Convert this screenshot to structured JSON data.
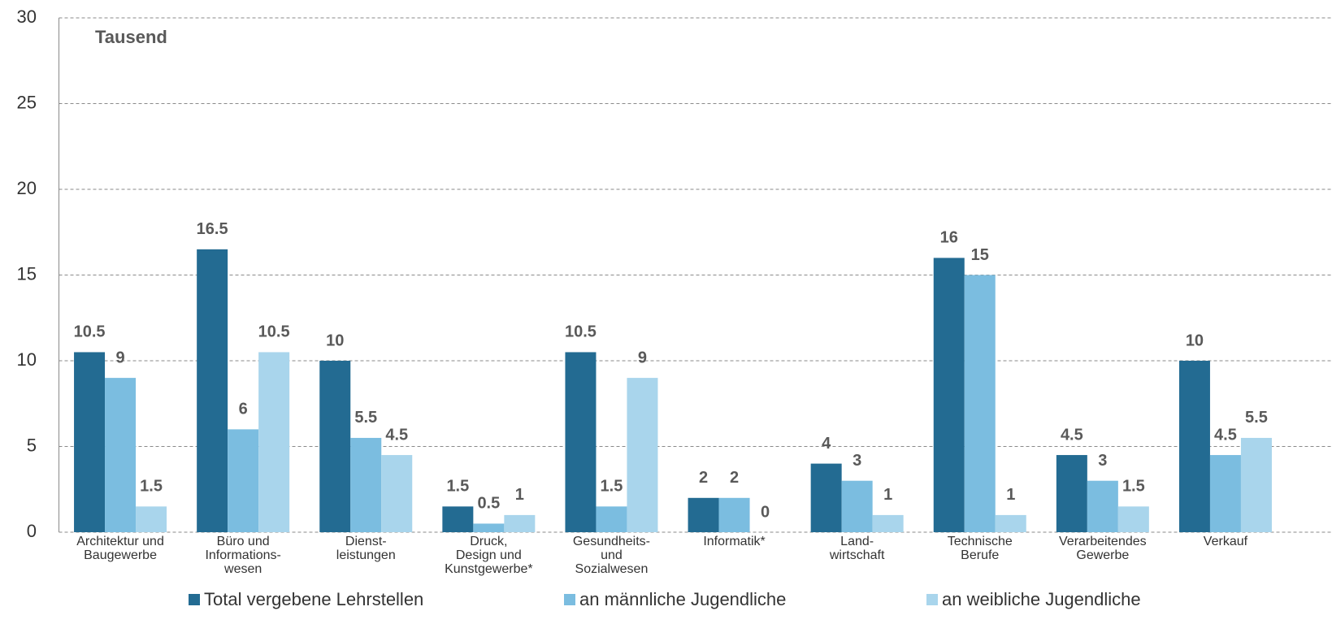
{
  "chart_data": {
    "type": "bar",
    "ylabel": "Tausend",
    "categories": [
      "Architektur und\nBaugewerbe",
      "Büro und\nInformations-\nwesen",
      "Dienst-\nleistungen",
      "Druck,\nDesign und\nKunstgewerbe*",
      "Gesundheits-\nund\nSozialwesen",
      "Informatik*",
      "Land-\nwirtschaft",
      "Technische\nBerufe",
      "Verarbeitendes\nGewerbe",
      "Verkauf"
    ],
    "series": [
      {
        "name": "Total vergebene Lehrstellen",
        "color": "#236b92",
        "values": [
          10.5,
          16.5,
          10,
          1.5,
          10.5,
          2,
          4,
          16,
          4.5,
          10
        ]
      },
      {
        "name": "an männliche Jugendliche",
        "color": "#7bbde0",
        "values": [
          9,
          6,
          5.5,
          0.5,
          1.5,
          2,
          3,
          15,
          3,
          4.5
        ]
      },
      {
        "name": "an weibliche Jugendliche",
        "color": "#a9d5ec",
        "values": [
          1.5,
          10.5,
          4.5,
          1,
          9,
          0,
          1,
          1,
          1.5,
          5.5
        ]
      }
    ],
    "ylim": [
      0,
      30
    ],
    "yticks": [
      0,
      5,
      10,
      15,
      20,
      25,
      30
    ],
    "grid": true,
    "legend": "bottom"
  }
}
